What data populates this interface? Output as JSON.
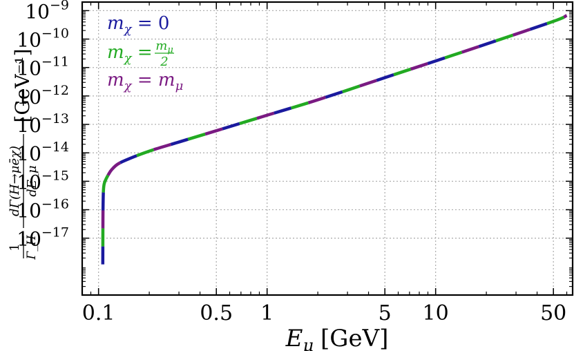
{
  "chart_data": {
    "type": "line",
    "title": "",
    "xlabel": {
      "symbol": "E",
      "sub": "μ",
      "unit": "[GeV]"
    },
    "ylabel": {
      "prefix_num": "1",
      "prefix_den": "Γ_H",
      "num": "dΓ(H→μēχ)",
      "den": "dE_μ",
      "unit": "[GeV⁻¹]"
    },
    "xscale": "log",
    "yscale": "log",
    "xlim": [
      0.08,
      65
    ],
    "ylim": [
      1e-19,
      2e-09
    ],
    "grid": true,
    "legend_position": "top-left",
    "x_ticks": [
      {
        "value": 0.1,
        "label": "0.1"
      },
      {
        "value": 0.5,
        "label": "0.5"
      },
      {
        "value": 1,
        "label": "1"
      },
      {
        "value": 5,
        "label": "5"
      },
      {
        "value": 10,
        "label": "10"
      },
      {
        "value": 50,
        "label": "50"
      }
    ],
    "y_ticks": [
      {
        "value": 1e-09,
        "label": "10",
        "exp": "−9"
      },
      {
        "value": 1e-10,
        "label": "10",
        "exp": "−10"
      },
      {
        "value": 1e-11,
        "label": "10",
        "exp": "−11"
      },
      {
        "value": 1e-12,
        "label": "10",
        "exp": "−12"
      },
      {
        "value": 1e-13,
        "label": "10",
        "exp": "−13"
      },
      {
        "value": 1e-14,
        "label": "10",
        "exp": "−14"
      },
      {
        "value": 1e-15,
        "label": "10",
        "exp": "−15"
      },
      {
        "value": 1e-16,
        "label": "10",
        "exp": "−16"
      },
      {
        "value": 1e-17,
        "label": "10",
        "exp": "−17"
      }
    ],
    "series": [
      {
        "name": "m_χ = 0",
        "color": "#1a1a9e",
        "dash_offset": 0
      },
      {
        "name": "m_χ = m_μ/2",
        "color": "#22aa22",
        "dash_offset": 26
      },
      {
        "name": "m_χ = m_μ",
        "color": "#7a1a82",
        "dash_offset": 52
      }
    ],
    "curve": {
      "x": [
        0.106,
        0.1062,
        0.1065,
        0.107,
        0.108,
        0.11,
        0.115,
        0.12,
        0.13,
        0.15,
        0.2,
        0.3,
        0.5,
        1,
        2,
        5,
        10,
        20,
        50,
        60
      ],
      "y": [
        1.2e-18,
        4e-17,
        2e-16,
        5e-16,
        8e-16,
        1.1e-15,
        1.8e-15,
        2.6e-15,
        4e-15,
        6e-15,
        1.15e-14,
        2.4e-14,
        6e-14,
        2.1e-13,
        7.3e-13,
        4.4e-12,
        1.7e-11,
        6.7e-11,
        4.2e-10,
        6.8e-10
      ]
    }
  }
}
